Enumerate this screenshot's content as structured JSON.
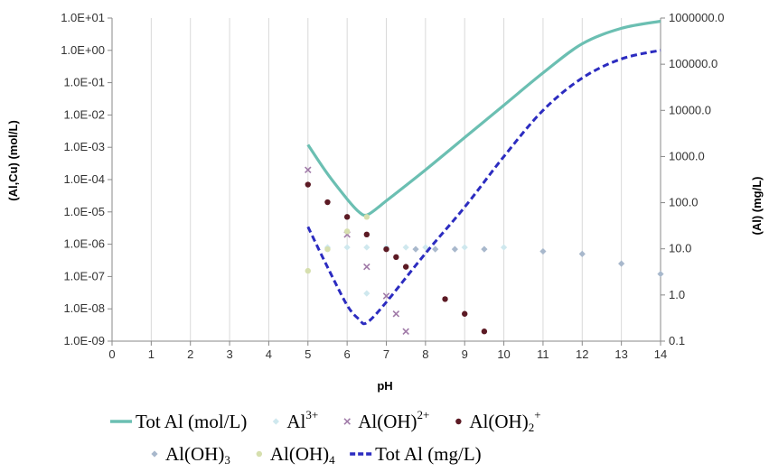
{
  "chart_data": {
    "type": "line",
    "xlabel": "pH",
    "ylabel_left": "(Al,Cu) (mol/L)",
    "ylabel_right": "(Al) (mg/L)",
    "xlim": [
      0,
      14
    ],
    "x_ticks": [
      "0",
      "1",
      "2",
      "3",
      "4",
      "5",
      "6",
      "7",
      "8",
      "9",
      "10",
      "11",
      "12",
      "13",
      "14"
    ],
    "ylim_left_log10": [
      -9,
      1
    ],
    "y_ticks_left": [
      "1.0E-09",
      "1.0E-08",
      "1.0E-07",
      "1.0E-06",
      "1.0E-05",
      "1.0E-04",
      "1.0E-03",
      "1.0E-02",
      "1.0E-01",
      "1.0E+00",
      "1.0E+01"
    ],
    "ylim_right_log10": [
      -1,
      6
    ],
    "y_ticks_right": [
      "0.1",
      "1.0",
      "10.0",
      "100.0",
      "1000.0",
      "10000.0",
      "100000.0",
      "1000000.0"
    ],
    "scale": "log",
    "grid": "vertical",
    "legend_position": "bottom",
    "series": [
      {
        "key": "tot_mol",
        "label_main": "Tot Al (mol/L)",
        "kind": "line",
        "axis": "left",
        "color": "#6bbfb2",
        "points": [
          [
            5.0,
            0.0012
          ],
          [
            5.5,
            0.00015
          ],
          [
            6.0,
            2.5e-05
          ],
          [
            6.3,
            1e-05
          ],
          [
            6.5,
            8e-06
          ],
          [
            6.8,
            1.4e-05
          ],
          [
            7.0,
            2.2e-05
          ],
          [
            8.0,
            0.0002
          ],
          [
            9.0,
            0.002
          ],
          [
            10.0,
            0.02
          ],
          [
            11.0,
            0.2
          ],
          [
            12.0,
            1.6
          ],
          [
            13.0,
            4.8
          ],
          [
            14.0,
            8.0
          ]
        ]
      },
      {
        "key": "al3",
        "label_main": "Al",
        "label_sup": "3+",
        "kind": "scatter",
        "marker": "diamond",
        "axis": "left",
        "color": "#cfe8ee",
        "points": [
          [
            5.5,
            8e-07
          ],
          [
            6.0,
            8e-07
          ],
          [
            6.5,
            8e-07
          ],
          [
            6.5,
            3e-08
          ],
          [
            7.0,
            8e-07
          ],
          [
            7.5,
            8e-07
          ],
          [
            8.0,
            8e-07
          ],
          [
            9.0,
            8e-07
          ],
          [
            10.0,
            8e-07
          ]
        ]
      },
      {
        "key": "aloh2",
        "label_main": "Al(OH)",
        "label_sup": "2+",
        "kind": "scatter",
        "marker": "x",
        "axis": "left",
        "color": "#a07aa8",
        "points": [
          [
            5.0,
            0.0002
          ],
          [
            6.0,
            2e-06
          ],
          [
            6.5,
            2e-07
          ],
          [
            7.0,
            2.5e-08
          ],
          [
            7.25,
            7e-09
          ],
          [
            7.5,
            2e-09
          ]
        ]
      },
      {
        "key": "aloh2p",
        "label_main": "Al(OH)",
        "label_sub": "2",
        "label_sup": "+",
        "kind": "scatter",
        "marker": "circle",
        "axis": "left",
        "color": "#5c1a24",
        "points": [
          [
            5.0,
            7e-05
          ],
          [
            5.5,
            2e-05
          ],
          [
            6.0,
            7e-06
          ],
          [
            6.5,
            2e-06
          ],
          [
            7.0,
            7e-07
          ],
          [
            7.25,
            4e-07
          ],
          [
            7.5,
            2e-07
          ],
          [
            8.5,
            2e-08
          ],
          [
            9.0,
            7e-09
          ],
          [
            9.5,
            2e-09
          ]
        ]
      },
      {
        "key": "aloh3",
        "label_main": "Al(OH)",
        "label_sub": "3",
        "kind": "scatter",
        "marker": "diamond",
        "axis": "left",
        "color": "#a8b8cc",
        "points": [
          [
            7.75,
            7e-07
          ],
          [
            8.25,
            7e-07
          ],
          [
            8.75,
            7e-07
          ],
          [
            9.5,
            7e-07
          ],
          [
            11.0,
            6e-07
          ],
          [
            12.0,
            5e-07
          ],
          [
            13.0,
            2.5e-07
          ],
          [
            14.0,
            1.2e-07
          ]
        ]
      },
      {
        "key": "aloh4",
        "label_main": "Al(OH)",
        "label_sub": "4",
        "kind": "scatter",
        "marker": "circle",
        "axis": "left",
        "color": "#d6dfae",
        "points": [
          [
            5.0,
            1.5e-07
          ],
          [
            5.5,
            7e-07
          ],
          [
            6.0,
            2.5e-06
          ],
          [
            6.5,
            7e-06
          ]
        ]
      },
      {
        "key": "tot_mg",
        "label_main": "Tot Al (mg/L)",
        "kind": "dashed-line",
        "axis": "right",
        "color": "#2c2cc0",
        "points": [
          [
            5.0,
            30
          ],
          [
            5.5,
            4
          ],
          [
            6.0,
            0.6
          ],
          [
            6.3,
            0.3
          ],
          [
            6.5,
            0.25
          ],
          [
            7.0,
            0.7
          ],
          [
            8.0,
            8
          ],
          [
            9.0,
            80
          ],
          [
            10.0,
            1000
          ],
          [
            11.0,
            10000
          ],
          [
            12.0,
            50000
          ],
          [
            13.0,
            130000
          ],
          [
            14.0,
            200000
          ]
        ]
      }
    ]
  }
}
